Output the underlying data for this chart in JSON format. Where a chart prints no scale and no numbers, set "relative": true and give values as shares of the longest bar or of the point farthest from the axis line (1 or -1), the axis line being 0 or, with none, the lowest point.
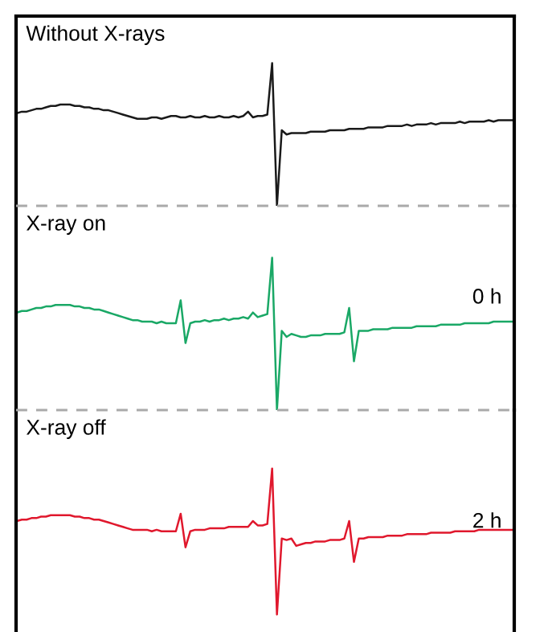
{
  "chart_data": [
    {
      "type": "line",
      "title": "Without X-rays",
      "relative": true,
      "categories": [
        null,
        null,
        null,
        null,
        null,
        null,
        null,
        null,
        null,
        null,
        null,
        null,
        null,
        null,
        null,
        null,
        null,
        null,
        null,
        null,
        null,
        null,
        null,
        null,
        null,
        null,
        null,
        null,
        null,
        null,
        null,
        null,
        null,
        null,
        null,
        null,
        null,
        null,
        null,
        null,
        null,
        null,
        null,
        null,
        null,
        null,
        null,
        null,
        null,
        null,
        null,
        null,
        null,
        null,
        null,
        null,
        null,
        null,
        null,
        null,
        null,
        null,
        null,
        null,
        null,
        null,
        null,
        null,
        null,
        null,
        null,
        null,
        null,
        null,
        null,
        null,
        null,
        null,
        null,
        null,
        null,
        null,
        null,
        null,
        null,
        null,
        null,
        null,
        null,
        null,
        null,
        null,
        null,
        null,
        null,
        null,
        null,
        null,
        null,
        null,
        null,
        null,
        null,
        null
      ],
      "series": [
        {
          "color": "#1a1a1a",
          "values": [
            0.65,
            0.66,
            0.66,
            0.67,
            0.68,
            0.68,
            0.69,
            0.7,
            0.7,
            0.71,
            0.71,
            0.71,
            0.7,
            0.7,
            0.69,
            0.69,
            0.68,
            0.68,
            0.67,
            0.67,
            0.66,
            0.65,
            0.64,
            0.63,
            0.62,
            0.61,
            0.61,
            0.61,
            0.62,
            0.62,
            0.61,
            0.62,
            0.63,
            0.63,
            0.62,
            0.62,
            0.63,
            0.62,
            0.62,
            0.63,
            0.62,
            0.62,
            0.63,
            0.62,
            0.62,
            0.63,
            0.62,
            0.63,
            0.66,
            0.62,
            0.63,
            0.63,
            0.64,
            1.0,
            0.0,
            0.53,
            0.5,
            0.51,
            0.51,
            0.51,
            0.51,
            0.52,
            0.52,
            0.52,
            0.52,
            0.53,
            0.53,
            0.53,
            0.53,
            0.54,
            0.54,
            0.54,
            0.54,
            0.55,
            0.55,
            0.55,
            0.55,
            0.56,
            0.56,
            0.56,
            0.56,
            0.57,
            0.56,
            0.57,
            0.57,
            0.57,
            0.58,
            0.57,
            0.58,
            0.58,
            0.58,
            0.58,
            0.59,
            0.58,
            0.59,
            0.59,
            0.59,
            0.59,
            0.6,
            0.59,
            0.6,
            0.6,
            0.6,
            0.6
          ]
        }
      ]
    },
    {
      "type": "line",
      "title": "X-ray on",
      "annotations": [
        "0 h"
      ],
      "relative": true,
      "categories": [
        null,
        null,
        null,
        null,
        null,
        null,
        null,
        null,
        null,
        null,
        null,
        null,
        null,
        null,
        null,
        null,
        null,
        null,
        null,
        null,
        null,
        null,
        null,
        null,
        null,
        null,
        null,
        null,
        null,
        null,
        null,
        null,
        null,
        null,
        null,
        null,
        null,
        null,
        null,
        null,
        null,
        null,
        null,
        null,
        null,
        null,
        null,
        null,
        null,
        null,
        null,
        null,
        null,
        null,
        null,
        null,
        null,
        null,
        null,
        null,
        null,
        null,
        null,
        null,
        null,
        null,
        null,
        null,
        null,
        null,
        null,
        null,
        null,
        null,
        null,
        null,
        null,
        null,
        null,
        null,
        null,
        null,
        null,
        null,
        null,
        null,
        null,
        null,
        null,
        null,
        null,
        null,
        null,
        null,
        null,
        null,
        null,
        null,
        null,
        null,
        null,
        null,
        null,
        null
      ],
      "series": [
        {
          "color": "#1aa866",
          "values": [
            0.64,
            0.65,
            0.65,
            0.66,
            0.67,
            0.67,
            0.68,
            0.68,
            0.69,
            0.69,
            0.69,
            0.69,
            0.68,
            0.68,
            0.67,
            0.67,
            0.66,
            0.66,
            0.65,
            0.64,
            0.63,
            0.62,
            0.61,
            0.6,
            0.59,
            0.59,
            0.58,
            0.58,
            0.58,
            0.57,
            0.58,
            0.57,
            0.57,
            0.57,
            0.72,
            0.44,
            0.57,
            0.58,
            0.58,
            0.59,
            0.58,
            0.59,
            0.59,
            0.6,
            0.59,
            0.6,
            0.6,
            0.61,
            0.6,
            0.64,
            0.61,
            0.62,
            0.63,
            1.0,
            0.0,
            0.52,
            0.48,
            0.5,
            0.49,
            0.48,
            0.48,
            0.49,
            0.49,
            0.49,
            0.5,
            0.5,
            0.5,
            0.5,
            0.51,
            0.67,
            0.32,
            0.52,
            0.52,
            0.52,
            0.53,
            0.53,
            0.53,
            0.53,
            0.54,
            0.54,
            0.54,
            0.54,
            0.54,
            0.55,
            0.55,
            0.55,
            0.55,
            0.55,
            0.56,
            0.56,
            0.56,
            0.56,
            0.56,
            0.57,
            0.57,
            0.57,
            0.57,
            0.57,
            0.57,
            0.58,
            0.58,
            0.58,
            0.58,
            0.58
          ]
        }
      ]
    },
    {
      "type": "line",
      "title": "X-ray off",
      "annotations": [
        "2 h"
      ],
      "relative": true,
      "categories": [
        null,
        null,
        null,
        null,
        null,
        null,
        null,
        null,
        null,
        null,
        null,
        null,
        null,
        null,
        null,
        null,
        null,
        null,
        null,
        null,
        null,
        null,
        null,
        null,
        null,
        null,
        null,
        null,
        null,
        null,
        null,
        null,
        null,
        null,
        null,
        null,
        null,
        null,
        null,
        null,
        null,
        null,
        null,
        null,
        null,
        null,
        null,
        null,
        null,
        null,
        null,
        null,
        null,
        null,
        null,
        null,
        null,
        null,
        null,
        null,
        null,
        null,
        null,
        null,
        null,
        null,
        null,
        null,
        null,
        null,
        null,
        null,
        null,
        null,
        null,
        null,
        null,
        null,
        null,
        null,
        null,
        null,
        null,
        null,
        null,
        null,
        null,
        null,
        null,
        null,
        null,
        null,
        null,
        null,
        null,
        null,
        null,
        null,
        null,
        null,
        null,
        null,
        null,
        null
      ],
      "series": [
        {
          "color": "#e0182d",
          "values": [
            0.64,
            0.65,
            0.65,
            0.66,
            0.66,
            0.67,
            0.67,
            0.68,
            0.68,
            0.68,
            0.68,
            0.68,
            0.67,
            0.67,
            0.66,
            0.66,
            0.65,
            0.65,
            0.64,
            0.63,
            0.62,
            0.61,
            0.6,
            0.59,
            0.58,
            0.58,
            0.58,
            0.58,
            0.57,
            0.58,
            0.57,
            0.57,
            0.57,
            0.57,
            0.69,
            0.46,
            0.57,
            0.58,
            0.58,
            0.58,
            0.59,
            0.59,
            0.59,
            0.59,
            0.6,
            0.6,
            0.6,
            0.6,
            0.6,
            0.64,
            0.61,
            0.61,
            0.62,
            1.0,
            0.0,
            0.52,
            0.51,
            0.52,
            0.47,
            0.48,
            0.49,
            0.49,
            0.5,
            0.5,
            0.5,
            0.51,
            0.51,
            0.51,
            0.52,
            0.64,
            0.36,
            0.52,
            0.52,
            0.53,
            0.53,
            0.53,
            0.53,
            0.54,
            0.54,
            0.54,
            0.54,
            0.55,
            0.55,
            0.55,
            0.55,
            0.55,
            0.56,
            0.56,
            0.56,
            0.56,
            0.56,
            0.57,
            0.57,
            0.57,
            0.57,
            0.57,
            0.58,
            0.58,
            0.58,
            0.58,
            0.58,
            0.58,
            0.58,
            0.58
          ]
        }
      ]
    }
  ]
}
